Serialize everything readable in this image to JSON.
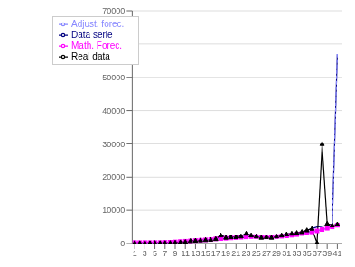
{
  "chart_data": {
    "type": "line",
    "x": [
      1,
      2,
      3,
      4,
      5,
      6,
      7,
      8,
      9,
      10,
      11,
      12,
      13,
      14,
      15,
      16,
      17,
      18,
      19,
      20,
      21,
      22,
      23,
      24,
      25,
      26,
      27,
      28,
      29,
      30,
      31,
      32,
      33,
      34,
      35,
      36,
      37,
      38,
      39,
      40,
      41
    ],
    "xlim": [
      0.5,
      42
    ],
    "xticks": [
      1,
      3,
      5,
      7,
      9,
      11,
      13,
      15,
      17,
      19,
      21,
      23,
      25,
      27,
      29,
      31,
      33,
      35,
      37,
      39,
      41
    ],
    "ylim": [
      0,
      70000
    ],
    "yticks": [
      0,
      10000,
      20000,
      30000,
      40000,
      50000,
      60000,
      70000
    ],
    "grid": "y",
    "legend": "upper left",
    "series": [
      {
        "name": "Data serie",
        "color": "#000080",
        "marker": "none",
        "line_style": "solid",
        "values": [
          200,
          150,
          180,
          160,
          200,
          170,
          180,
          190,
          300,
          400,
          500,
          800,
          900,
          1000,
          1100,
          1200,
          1400,
          2500,
          1800,
          2000,
          2000,
          2200,
          3000,
          2500,
          2200,
          1800,
          2000,
          1800,
          2200,
          2500,
          2800,
          3000,
          3200,
          3500,
          4000,
          4500,
          5000,
          5200,
          5500,
          5800,
          57000
        ]
      },
      {
        "name": "Math. Forec.",
        "color": "#FF00FF",
        "marker": "square",
        "line_style": "solid",
        "values": [
          300,
          280,
          300,
          280,
          300,
          300,
          350,
          400,
          500,
          600,
          700,
          800,
          900,
          1000,
          1100,
          1200,
          1400,
          1500,
          1600,
          1700,
          1800,
          1900,
          2000,
          2100,
          2100,
          2000,
          2000,
          2000,
          2100,
          2200,
          2300,
          2500,
          2700,
          3000,
          3200,
          3500,
          3800,
          4200,
          4600,
          5000,
          5500
        ]
      },
      {
        "name": "Real data",
        "color": "#000000",
        "marker": "triangle",
        "line_style": "solid",
        "values": [
          200,
          150,
          180,
          160,
          200,
          170,
          180,
          190,
          300,
          400,
          500,
          800,
          900,
          1000,
          1100,
          1200,
          1400,
          2500,
          1800,
          2000,
          2000,
          2200,
          3000,
          2500,
          2200,
          1800,
          2000,
          1800,
          2200,
          2500,
          2800,
          3000,
          3200,
          3500,
          4000,
          4500,
          200,
          30000,
          6000,
          5500,
          5800
        ]
      },
      {
        "name": "Adjust. forec.",
        "color": "#8888FF",
        "marker": "none",
        "line_style": "dashed",
        "values": [
          200,
          150,
          180,
          160,
          200,
          170,
          180,
          190,
          300,
          400,
          500,
          800,
          900,
          1000,
          1100,
          1200,
          1400,
          1500,
          1600,
          1700,
          1800,
          1900,
          2000,
          2100,
          2100,
          2000,
          2000,
          2000,
          2100,
          2200,
          2300,
          2500,
          2700,
          3000,
          3200,
          3500,
          3800,
          4200,
          4600,
          5000,
          57000
        ]
      }
    ]
  }
}
